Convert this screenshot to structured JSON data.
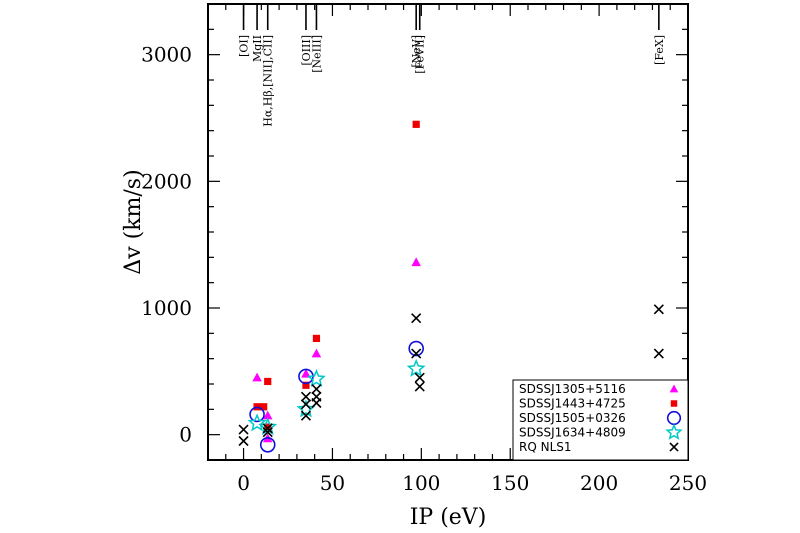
{
  "chart_data": {
    "type": "scatter",
    "xlabel": "IP (eV)",
    "ylabel": "Δv (km/s)",
    "xlim": [
      -20,
      250
    ],
    "ylim": [
      -200,
      3400
    ],
    "xticks": [
      0,
      50,
      100,
      150,
      200,
      250
    ],
    "yticks": [
      0,
      1000,
      2000,
      3000
    ],
    "legend_position": "bottom-right",
    "emission_lines": [
      {
        "label": "[OI]",
        "ip": 0
      },
      {
        "label": "MgII",
        "ip": 7.6
      },
      {
        "label": "Hα,Hβ,[NII],CII]",
        "ip": 13.6
      },
      {
        "label": "[OIII]",
        "ip": 35.1
      },
      {
        "label": "[NeIII]",
        "ip": 41
      },
      {
        "label": "[NeV]",
        "ip": 97.1
      },
      {
        "label": "[FeVII]",
        "ip": 99.1
      },
      {
        "label": "[FeX]",
        "ip": 233.6
      }
    ],
    "series": [
      {
        "name": "SDSSJ1305+5116",
        "marker": "triangle",
        "color": "#ff00ff",
        "points": [
          [
            7.6,
            450
          ],
          [
            13.6,
            150
          ],
          [
            13.6,
            -30
          ],
          [
            35.1,
            480
          ],
          [
            41,
            640
          ],
          [
            97.1,
            1360
          ]
        ]
      },
      {
        "name": "SDSSJ1443+4725",
        "marker": "square",
        "color": "#ee0000",
        "points": [
          [
            7.6,
            220
          ],
          [
            11.3,
            220
          ],
          [
            13.6,
            420
          ],
          [
            13.6,
            60
          ],
          [
            35.1,
            390
          ],
          [
            41,
            760
          ],
          [
            97.1,
            2450
          ]
        ]
      },
      {
        "name": "SDSSJ1505+0326",
        "marker": "circle-open",
        "color": "#1010dd",
        "points": [
          [
            7.6,
            160
          ],
          [
            13.6,
            -80
          ],
          [
            35.1,
            460
          ],
          [
            97.1,
            680
          ]
        ]
      },
      {
        "name": "SDSSJ1634+4809",
        "marker": "star-open",
        "color": "#00c8c8",
        "points": [
          [
            7.6,
            90
          ],
          [
            13.6,
            60
          ],
          [
            35.1,
            200
          ],
          [
            41,
            440
          ],
          [
            97.1,
            520
          ]
        ]
      },
      {
        "name": "RQ NLS1",
        "marker": "cross",
        "color": "#000000",
        "points": [
          [
            0,
            40
          ],
          [
            0,
            -50
          ],
          [
            13.6,
            20
          ],
          [
            13.6,
            50
          ],
          [
            35.1,
            300
          ],
          [
            35.1,
            240
          ],
          [
            35.1,
            150
          ],
          [
            41,
            250
          ],
          [
            41,
            300
          ],
          [
            41,
            360
          ],
          [
            97.1,
            920
          ],
          [
            97.1,
            640
          ],
          [
            99.1,
            450
          ],
          [
            99.1,
            380
          ],
          [
            233.6,
            990
          ],
          [
            233.6,
            640
          ]
        ]
      }
    ]
  }
}
